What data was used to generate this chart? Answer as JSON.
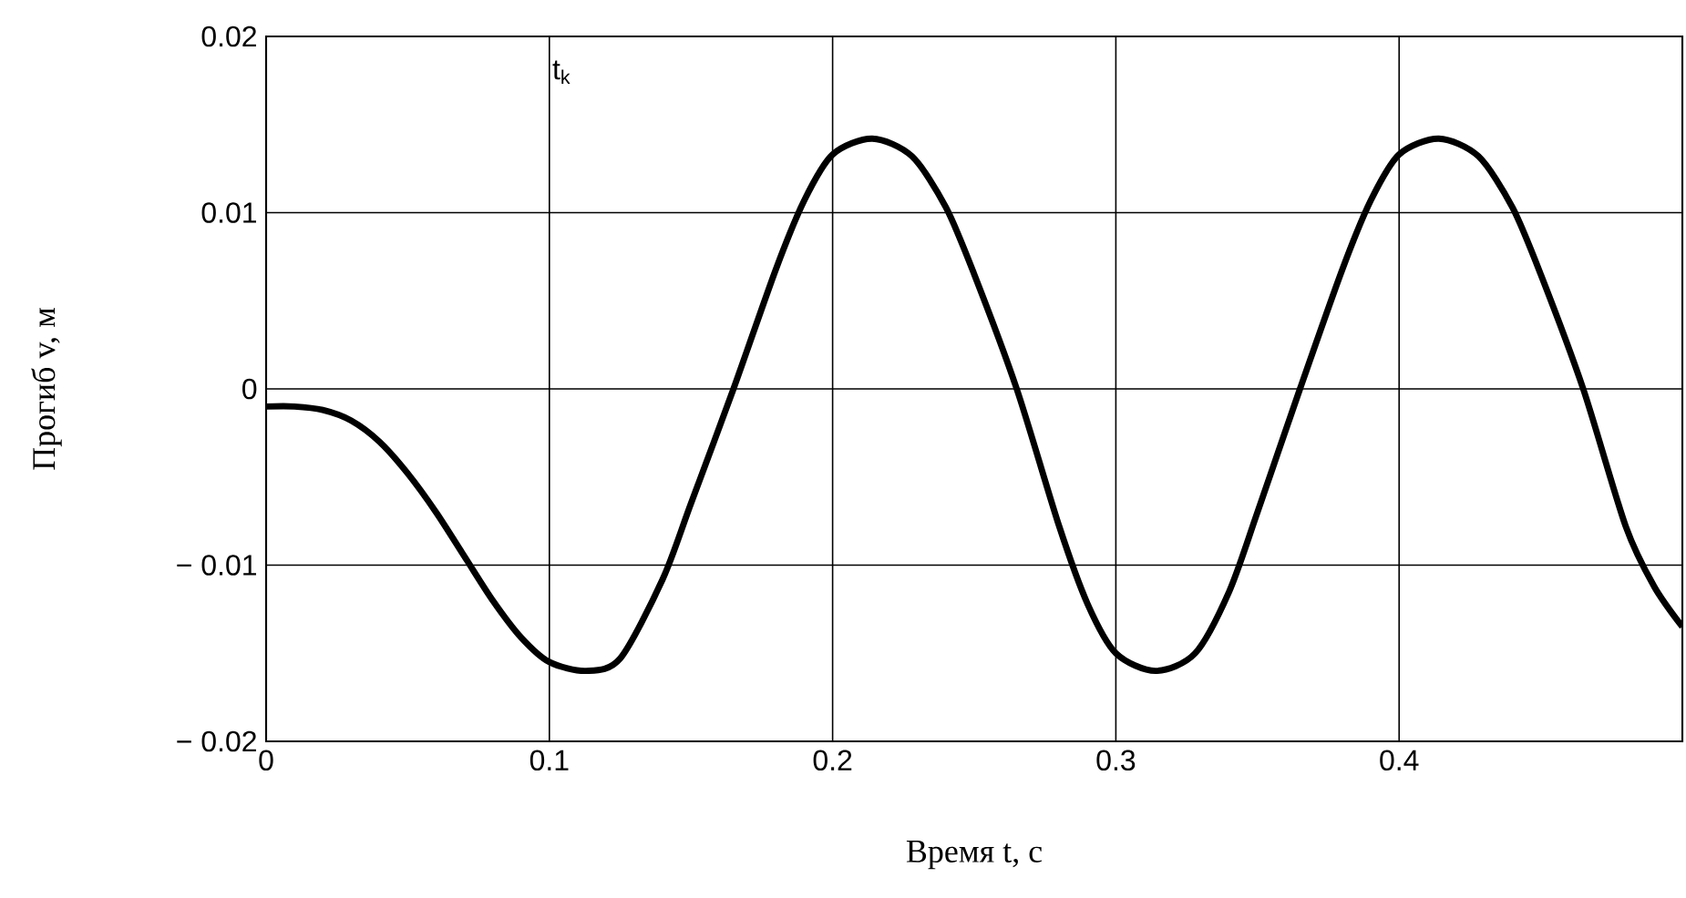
{
  "chart_data": {
    "type": "line",
    "xlabel": "Время t, c",
    "ylabel": "Прогиб v, м",
    "annotations": [
      "t$_{k}$"
    ],
    "xlim": [
      0,
      0.5
    ],
    "ylim": [
      -0.02,
      0.02
    ],
    "xticks": [
      0,
      0.1,
      0.2,
      0.3,
      0.4
    ],
    "yticks": [
      {
        "value": -0.02,
        "label": "− 0.02"
      },
      {
        "value": -0.01,
        "label": "− 0.01"
      },
      0,
      0.01,
      0.02
    ],
    "grid": true,
    "marker": "none",
    "line_style": "solid",
    "series": [
      {
        "color": "#000000",
        "x": [
          0,
          0.01,
          0.02,
          0.03,
          0.04,
          0.05,
          0.06,
          0.07,
          0.08,
          0.09,
          0.1,
          0.113,
          0.125,
          0.14,
          0.15,
          0.165,
          0.18,
          0.19,
          0.2,
          0.214,
          0.228,
          0.24,
          0.25,
          0.265,
          0.28,
          0.29,
          0.3,
          0.314,
          0.328,
          0.34,
          0.35,
          0.365,
          0.38,
          0.39,
          0.4,
          0.414,
          0.428,
          0.44,
          0.45,
          0.465,
          0.48,
          0.49,
          0.5
        ],
        "values": [
          -0.001,
          -0.001,
          -0.0012,
          -0.0018,
          -0.003,
          -0.0048,
          -0.007,
          -0.0095,
          -0.012,
          -0.0141,
          -0.0155,
          -0.016,
          -0.0153,
          -0.0108,
          -0.0065,
          0.0,
          0.0068,
          0.0107,
          0.0133,
          0.0142,
          0.0132,
          0.0103,
          0.0065,
          0.0,
          -0.0078,
          -0.0122,
          -0.015,
          -0.016,
          -0.015,
          -0.0115,
          -0.007,
          0.0,
          0.0068,
          0.0107,
          0.0133,
          0.0142,
          0.0132,
          0.0103,
          0.0065,
          0.0,
          -0.0078,
          -0.0112,
          -0.0135
        ]
      }
    ]
  }
}
